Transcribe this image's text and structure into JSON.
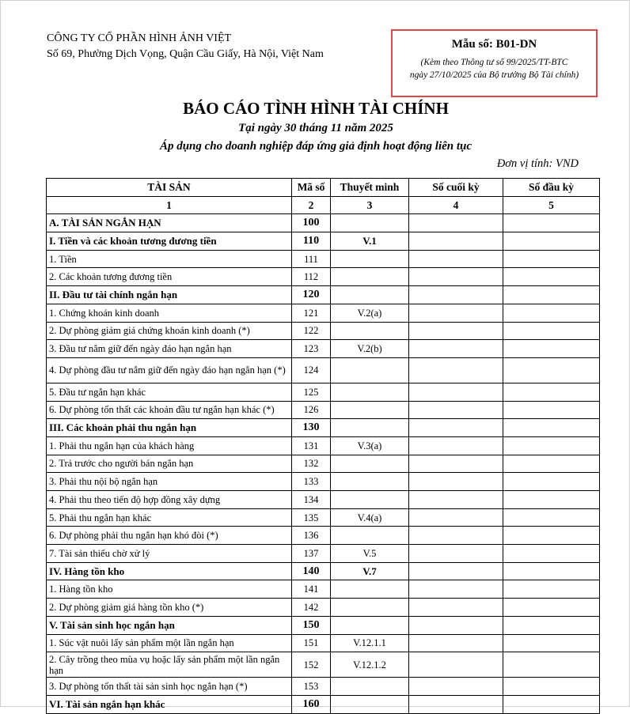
{
  "company": {
    "name": "CÔNG TY CỔ PHẦN HÌNH ẢNH VIỆT",
    "address": "Số 69, Phường Dịch Vọng, Quận Cầu Giấy, Hà Nội, Việt Nam"
  },
  "form": {
    "code": "Mẫu số: B01-DN",
    "note_line1": "(Kèm theo Thông tư số 99/2025/TT-BTC",
    "note_line2": "ngày 27/10/2025 của Bộ trưởng Bộ Tài chính)",
    "border_color": "#e04848"
  },
  "report": {
    "title": "BÁO CÁO TÌNH HÌNH TÀI CHÍNH",
    "date": "Tại ngày 30 tháng 11 năm 2025",
    "scope": "Áp dụng cho doanh nghiệp đáp ứng giả định hoạt động liên tục",
    "unit": "Đơn vị tính: VND"
  },
  "table": {
    "headers": [
      "TÀI SẢN",
      "Mã số",
      "Thuyết minh",
      "Số cuối kỳ",
      "Số đầu kỳ"
    ],
    "col_numbers": [
      "1",
      "2",
      "3",
      "4",
      "5"
    ],
    "rows": [
      {
        "name": "A. TÀI SẢN NGẮN HẠN",
        "code": "100",
        "note": "",
        "bold": true
      },
      {
        "name": "I. Tiền và các khoản tương đương tiền",
        "code": "110",
        "note": "V.1",
        "bold": true
      },
      {
        "name": "1. Tiền",
        "code": "111",
        "note": ""
      },
      {
        "name": "2. Các khoản tương đương tiền",
        "code": "112",
        "note": ""
      },
      {
        "name": "II. Đầu tư tài chính ngắn hạn",
        "code": "120",
        "note": "",
        "bold": true
      },
      {
        "name": "1. Chứng khoán kinh doanh",
        "code": "121",
        "note": "V.2(a)"
      },
      {
        "name": "2. Dự phòng giảm giá chứng khoán kinh doanh (*)",
        "code": "122",
        "note": ""
      },
      {
        "name": "3. Đầu tư nắm giữ đến ngày đáo hạn ngắn hạn",
        "code": "123",
        "note": "V.2(b)"
      },
      {
        "name": "4. Dự phòng đầu tư nắm giữ đến ngày đáo hạn ngắn hạn (*)",
        "code": "124",
        "note": "",
        "tall": true
      },
      {
        "name": "5. Đầu tư ngắn hạn khác",
        "code": "125",
        "note": ""
      },
      {
        "name": "6. Dự phòng tổn thất các khoản đầu tư ngắn hạn khác (*)",
        "code": "126",
        "note": ""
      },
      {
        "name": "III. Các khoản phải thu ngắn hạn",
        "code": "130",
        "note": "",
        "bold": true
      },
      {
        "name": "1. Phải thu ngắn hạn của khách hàng",
        "code": "131",
        "note": "V.3(a)"
      },
      {
        "name": "2. Trả trước cho người bán ngắn hạn",
        "code": "132",
        "note": ""
      },
      {
        "name": "3. Phải thu nội bộ ngắn hạn",
        "code": "133",
        "note": ""
      },
      {
        "name": "4. Phải thu theo tiến độ hợp đồng xây dựng",
        "code": "134",
        "note": ""
      },
      {
        "name": "5. Phải thu ngắn hạn khác",
        "code": "135",
        "note": "V.4(a)"
      },
      {
        "name": "6. Dự phòng phải thu ngắn hạn khó đòi (*)",
        "code": "136",
        "note": ""
      },
      {
        "name": "7. Tài sản thiếu chờ xử lý",
        "code": "137",
        "note": "V.5"
      },
      {
        "name": "IV. Hàng tồn kho",
        "code": "140",
        "note": "V.7",
        "bold": true
      },
      {
        "name": "1. Hàng tồn kho",
        "code": "141",
        "note": ""
      },
      {
        "name": "2. Dự phòng giảm giá hàng tồn kho (*)",
        "code": "142",
        "note": ""
      },
      {
        "name": "V. Tài sản sinh học ngắn hạn",
        "code": "150",
        "note": "",
        "bold": true
      },
      {
        "name": "1. Súc vật nuôi lấy sản phẩm một lần ngắn hạn",
        "code": "151",
        "note": "V.12.1.1"
      },
      {
        "name": "2. Cây trồng theo mùa vụ hoặc lấy sản phẩm một lần ngắn hạn",
        "code": "152",
        "note": "V.12.1.2",
        "tall": true
      },
      {
        "name": "3. Dự phòng tổn thất tài sản sinh học ngắn hạn (*)",
        "code": "153",
        "note": ""
      },
      {
        "name": "VI. Tài sản ngắn hạn khác",
        "code": "160",
        "note": "",
        "bold": true
      }
    ]
  }
}
